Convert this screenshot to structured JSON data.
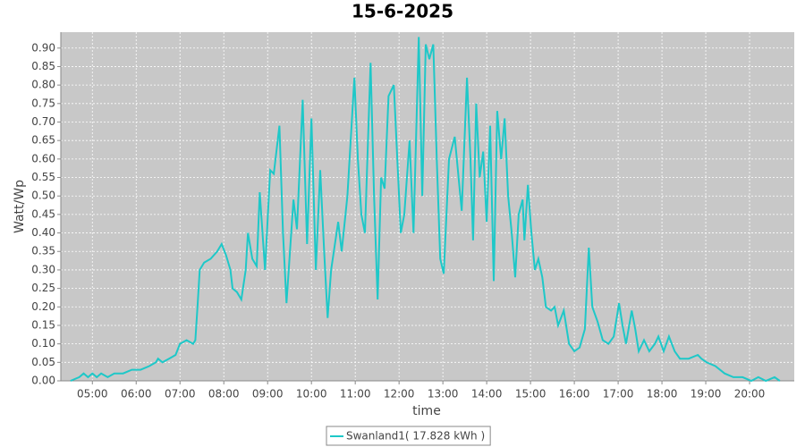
{
  "chart_data": {
    "type": "line",
    "title": "15-6-2025",
    "x_label": "time",
    "y_label": "Watt/Wp",
    "x": [
      4.5,
      4.7,
      4.8,
      4.9,
      5.0,
      5.1,
      5.2,
      5.35,
      5.5,
      5.7,
      5.9,
      6.1,
      6.3,
      6.45,
      6.5,
      6.6,
      6.75,
      6.9,
      7.0,
      7.15,
      7.3,
      7.35,
      7.4,
      7.45,
      7.55,
      7.7,
      7.85,
      7.95,
      8.05,
      8.15,
      8.2,
      8.3,
      8.4,
      8.5,
      8.55,
      8.65,
      8.75,
      8.82,
      8.94,
      9.06,
      9.14,
      9.27,
      9.35,
      9.43,
      9.59,
      9.67,
      9.8,
      9.9,
      10.0,
      10.1,
      10.2,
      10.29,
      10.37,
      10.45,
      10.61,
      10.69,
      10.82,
      10.98,
      11.06,
      11.14,
      11.22,
      11.35,
      11.43,
      11.51,
      11.59,
      11.67,
      11.76,
      11.88,
      11.96,
      12.04,
      12.12,
      12.24,
      12.33,
      12.45,
      12.53,
      12.61,
      12.69,
      12.78,
      12.86,
      12.94,
      13.02,
      13.14,
      13.27,
      13.43,
      13.55,
      13.63,
      13.69,
      13.76,
      13.84,
      13.92,
      14.0,
      14.08,
      14.16,
      14.24,
      14.33,
      14.41,
      14.49,
      14.57,
      14.65,
      14.73,
      14.82,
      14.86,
      14.94,
      15.02,
      15.1,
      15.18,
      15.27,
      15.35,
      15.47,
      15.55,
      15.63,
      15.76,
      15.88,
      16.0,
      16.12,
      16.24,
      16.33,
      16.41,
      16.53,
      16.65,
      16.78,
      16.9,
      17.02,
      17.1,
      17.18,
      17.31,
      17.39,
      17.47,
      17.59,
      17.71,
      17.84,
      17.92,
      18.04,
      18.16,
      18.29,
      18.41,
      18.61,
      18.82,
      18.9,
      19.02,
      19.22,
      19.43,
      19.63,
      19.84,
      20.04,
      20.2,
      20.37,
      20.57,
      20.69
    ],
    "series": [
      {
        "name": "Swanland1( 17.828 kWh )",
        "color": "#1ec8c8",
        "values": [
          0.0,
          0.01,
          0.02,
          0.01,
          0.02,
          0.01,
          0.02,
          0.01,
          0.02,
          0.02,
          0.03,
          0.03,
          0.04,
          0.05,
          0.06,
          0.05,
          0.06,
          0.07,
          0.1,
          0.11,
          0.1,
          0.11,
          0.2,
          0.3,
          0.32,
          0.33,
          0.35,
          0.37,
          0.34,
          0.3,
          0.25,
          0.24,
          0.22,
          0.3,
          0.4,
          0.33,
          0.31,
          0.51,
          0.3,
          0.57,
          0.56,
          0.69,
          0.4,
          0.21,
          0.49,
          0.41,
          0.76,
          0.37,
          0.71,
          0.3,
          0.57,
          0.35,
          0.17,
          0.3,
          0.43,
          0.35,
          0.5,
          0.82,
          0.6,
          0.45,
          0.4,
          0.86,
          0.5,
          0.22,
          0.55,
          0.52,
          0.77,
          0.8,
          0.6,
          0.4,
          0.45,
          0.65,
          0.4,
          0.93,
          0.5,
          0.91,
          0.87,
          0.91,
          0.6,
          0.33,
          0.29,
          0.6,
          0.66,
          0.46,
          0.82,
          0.6,
          0.38,
          0.75,
          0.55,
          0.62,
          0.43,
          0.69,
          0.27,
          0.73,
          0.6,
          0.71,
          0.5,
          0.4,
          0.28,
          0.45,
          0.49,
          0.38,
          0.53,
          0.4,
          0.3,
          0.33,
          0.28,
          0.2,
          0.19,
          0.2,
          0.15,
          0.19,
          0.1,
          0.08,
          0.09,
          0.14,
          0.36,
          0.2,
          0.16,
          0.11,
          0.1,
          0.12,
          0.21,
          0.15,
          0.1,
          0.19,
          0.14,
          0.08,
          0.11,
          0.08,
          0.1,
          0.12,
          0.08,
          0.12,
          0.08,
          0.06,
          0.06,
          0.07,
          0.06,
          0.05,
          0.04,
          0.02,
          0.01,
          0.01,
          0.0,
          0.01,
          0.0,
          0.01,
          0.0
        ]
      }
    ],
    "xlim": [
      4.28,
      21.02
    ],
    "xticks": [
      {
        "value": 5,
        "label": "05:00"
      },
      {
        "value": 6,
        "label": "06:00"
      },
      {
        "value": 7,
        "label": "07:00"
      },
      {
        "value": 8,
        "label": "08:00"
      },
      {
        "value": 9,
        "label": "09:00"
      },
      {
        "value": 10,
        "label": "10:00"
      },
      {
        "value": 11,
        "label": "11:00"
      },
      {
        "value": 12,
        "label": "12:00"
      },
      {
        "value": 13,
        "label": "13:00"
      },
      {
        "value": 14,
        "label": "14:00"
      },
      {
        "value": 15,
        "label": "15:00"
      },
      {
        "value": 16,
        "label": "16:00"
      },
      {
        "value": 17,
        "label": "17:00"
      },
      {
        "value": 18,
        "label": "18:00"
      },
      {
        "value": 19,
        "label": "19:00"
      },
      {
        "value": 20,
        "label": "20:00"
      }
    ],
    "ylim": [
      0,
      0.943
    ],
    "yticks": [
      {
        "value": 0,
        "label": "0.00"
      },
      {
        "value": 0.05,
        "label": "0.05"
      },
      {
        "value": 0.1,
        "label": "0.10"
      },
      {
        "value": 0.15,
        "label": "0.15"
      },
      {
        "value": 0.2,
        "label": "0.20"
      },
      {
        "value": 0.25,
        "label": "0.25"
      },
      {
        "value": 0.3,
        "label": "0.30"
      },
      {
        "value": 0.35,
        "label": "0.35"
      },
      {
        "value": 0.4,
        "label": "0.40"
      },
      {
        "value": 0.45,
        "label": "0.45"
      },
      {
        "value": 0.5,
        "label": "0.50"
      },
      {
        "value": 0.55,
        "label": "0.55"
      },
      {
        "value": 0.6,
        "label": "0.60"
      },
      {
        "value": 0.65,
        "label": "0.65"
      },
      {
        "value": 0.7,
        "label": "0.70"
      },
      {
        "value": 0.75,
        "label": "0.75"
      },
      {
        "value": 0.8,
        "label": "0.80"
      },
      {
        "value": 0.85,
        "label": "0.85"
      },
      {
        "value": 0.9,
        "label": "0.90"
      }
    ],
    "grid": true,
    "legend": "bottom"
  }
}
